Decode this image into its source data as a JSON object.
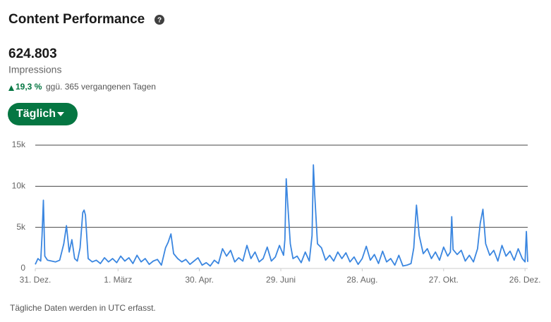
{
  "header": {
    "title": "Content Performance",
    "total": "624.803",
    "metric": "Impressions",
    "change": "19,3 %",
    "change_note": "ggü. 365 vergangenen Tagen",
    "button": "Täglich"
  },
  "footnote": "Tägliche Daten werden in UTC erfasst.",
  "chart_data": {
    "type": "line",
    "color": "#3a86e0",
    "grid": true,
    "xlim": [
      0,
      363
    ],
    "xticks": [
      {
        "value": 0,
        "label": "31. Dez."
      },
      {
        "value": 61,
        "label": "1. März"
      },
      {
        "value": 121,
        "label": "30. Apr."
      },
      {
        "value": 181,
        "label": "29. Juni"
      },
      {
        "value": 241,
        "label": "28. Aug."
      },
      {
        "value": 301,
        "label": "27. Okt."
      },
      {
        "value": 361,
        "label": "26. Dez."
      }
    ],
    "ylim": [
      0,
      15000
    ],
    "yticks": [
      0,
      {
        "value": 5000,
        "label": "5k"
      },
      {
        "value": 10000,
        "label": "10k"
      },
      {
        "value": 15000,
        "label": "15k"
      }
    ],
    "x": [
      0,
      2,
      4,
      5,
      6,
      7,
      9,
      12,
      15,
      18,
      21,
      23,
      25,
      27,
      29,
      31,
      33,
      35,
      36,
      37,
      39,
      42,
      45,
      48,
      51,
      54,
      57,
      60,
      63,
      66,
      69,
      72,
      75,
      78,
      81,
      84,
      87,
      90,
      93,
      96,
      98,
      100,
      102,
      105,
      108,
      111,
      114,
      117,
      120,
      123,
      126,
      129,
      132,
      135,
      138,
      141,
      144,
      147,
      150,
      153,
      156,
      159,
      162,
      165,
      168,
      171,
      174,
      177,
      180,
      183,
      184,
      185,
      186,
      188,
      190,
      193,
      196,
      199,
      202,
      204,
      205,
      206,
      208,
      211,
      214,
      217,
      220,
      223,
      226,
      229,
      232,
      235,
      238,
      241,
      244,
      247,
      250,
      253,
      256,
      259,
      262,
      265,
      268,
      271,
      274,
      277,
      279,
      281,
      283,
      286,
      289,
      292,
      295,
      298,
      301,
      304,
      306,
      307,
      308,
      311,
      314,
      317,
      320,
      323,
      326,
      328,
      330,
      332,
      335,
      338,
      341,
      344,
      347,
      350,
      353,
      356,
      359,
      361,
      362,
      363
    ],
    "values": [
      500,
      1200,
      900,
      4000,
      8300,
      1500,
      1000,
      900,
      800,
      1000,
      3000,
      5200,
      2000,
      3500,
      1200,
      900,
      2500,
      6800,
      7100,
      6500,
      1200,
      800,
      1000,
      600,
      1300,
      800,
      1200,
      700,
      1500,
      900,
      1300,
      600,
      1600,
      800,
      1200,
      500,
      900,
      1100,
      400,
      2500,
      3200,
      4200,
      1800,
      1200,
      800,
      1100,
      500,
      900,
      1300,
      400,
      700,
      300,
      1000,
      600,
      2400,
      1500,
      2200,
      800,
      1300,
      900,
      2800,
      1200,
      2000,
      800,
      1200,
      2600,
      900,
      1400,
      2800,
      1600,
      3500,
      10900,
      8000,
      3000,
      1200,
      1500,
      700,
      2000,
      900,
      4000,
      12600,
      9000,
      3000,
      2500,
      1000,
      1600,
      900,
      2000,
      1200,
      1900,
      800,
      1400,
      500,
      1200,
      2700,
      1000,
      1700,
      600,
      2100,
      800,
      1200,
      400,
      1600,
      300,
      400,
      600,
      2500,
      7700,
      4000,
      1800,
      2400,
      1200,
      2000,
      1000,
      2600,
      1500,
      2000,
      6300,
      2300,
      1700,
      2200,
      900,
      1600,
      800,
      2400,
      5500,
      7200,
      3000,
      1600,
      2200,
      900,
      2800,
      1500,
      2100,
      1000,
      2400,
      1200,
      800,
      4500,
      800
    ]
  }
}
